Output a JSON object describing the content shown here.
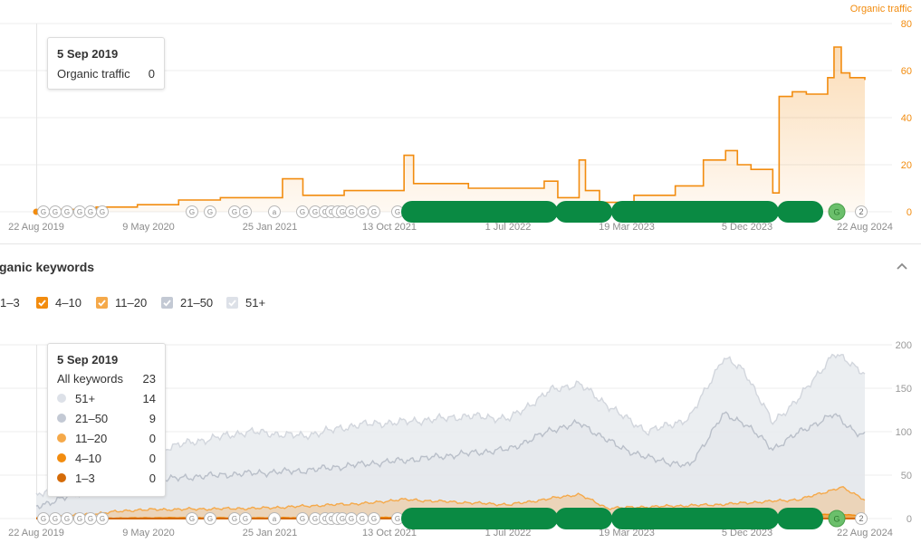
{
  "top_chart": {
    "series_label": "Organic traffic",
    "tooltip": {
      "date": "5 Sep 2019",
      "label": "Organic traffic",
      "value": "0"
    }
  },
  "keywords_section": {
    "title": "ganic keywords",
    "legend": [
      {
        "label": "1–3",
        "checked": false,
        "color": "#d46b08"
      },
      {
        "label": "4–10",
        "checked": true,
        "color": "#f28c0f"
      },
      {
        "label": "11–20",
        "checked": true,
        "color": "#f5a94a"
      },
      {
        "label": "21–50",
        "checked": false,
        "color": "#c3c9d4"
      },
      {
        "label": "51+",
        "checked": false,
        "color": "#dde1e8"
      }
    ],
    "tooltip": {
      "date": "5 Sep 2019",
      "total_label": "All keywords",
      "total_value": "23",
      "rows": [
        {
          "label": "51+",
          "value": "14",
          "color": "#dde1e8"
        },
        {
          "label": "21–50",
          "value": "9",
          "color": "#c3c9d4"
        },
        {
          "label": "11–20",
          "value": "0",
          "color": "#f5a94a"
        },
        {
          "label": "4–10",
          "value": "0",
          "color": "#f28c0f"
        },
        {
          "label": "1–3",
          "value": "0",
          "color": "#d46b08"
        }
      ]
    }
  },
  "colors": {
    "traffic": "#f28c0f",
    "kw_51": "#d2d6dd",
    "kw_21": "#b9bfc9",
    "kw_11": "#f5a94a",
    "kw_4": "#f28c0f",
    "kw_1": "#d46b08",
    "update_marker": "#0a8a43",
    "update_marker_light": "#6bbf6b"
  },
  "chart_data": [
    {
      "type": "area",
      "series": [
        {
          "name": "Organic traffic",
          "x": [
            "2019-08-22",
            "2019-10-01",
            "2020-01-01",
            "2020-04-01",
            "2020-07-01",
            "2020-10-01",
            "2021-01-01",
            "2021-02-15",
            "2021-04-01",
            "2021-07-01",
            "2021-10-01",
            "2021-11-10",
            "2021-12-01",
            "2022-04-01",
            "2022-07-01",
            "2022-09-15",
            "2022-10-15",
            "2022-12-01",
            "2022-12-15",
            "2023-01-15",
            "2023-02-15",
            "2023-04-01",
            "2023-07-01",
            "2023-09-01",
            "2023-10-20",
            "2023-11-15",
            "2023-12-15",
            "2024-02-01",
            "2024-02-15",
            "2024-03-15",
            "2024-04-15",
            "2024-06-01",
            "2024-06-15",
            "2024-07-01",
            "2024-07-20",
            "2024-08-22"
          ],
          "values": [
            0,
            1,
            2,
            3,
            5,
            6,
            6,
            14,
            7,
            9,
            9,
            24,
            12,
            10,
            10,
            13,
            6,
            22,
            9,
            4,
            4,
            7,
            11,
            22,
            26,
            20,
            18,
            8,
            49,
            51,
            50,
            57,
            70,
            59,
            57,
            56
          ]
        }
      ],
      "x_ticks": [
        "22 Aug 2019",
        "9 May 2020",
        "25 Jan 2021",
        "13 Oct 2021",
        "1 Jul 2022",
        "19 Mar 2023",
        "5 Dec 2023",
        "22 Aug 2024"
      ],
      "y_ticks": [
        0,
        20,
        40,
        60,
        80
      ],
      "ylim": [
        0,
        80
      ],
      "legend": "top-right"
    },
    {
      "type": "area",
      "series": [
        {
          "name": "51+",
          "x": [
            "2019-08-22",
            "2019-12-01",
            "2020-04-01",
            "2020-08-01",
            "2020-12-01",
            "2021-04-01",
            "2021-08-01",
            "2021-12-01",
            "2022-04-01",
            "2022-07-01",
            "2022-10-01",
            "2022-12-01",
            "2023-03-01",
            "2023-05-01",
            "2023-08-01",
            "2023-10-15",
            "2023-12-01",
            "2024-02-01",
            "2024-04-01",
            "2024-06-15",
            "2024-08-01",
            "2024-08-22"
          ],
          "values": [
            24,
            60,
            75,
            88,
            100,
            95,
            108,
            112,
            118,
            115,
            148,
            155,
            120,
            100,
            115,
            185,
            170,
            110,
            140,
            190,
            175,
            168
          ]
        },
        {
          "name": "21–50",
          "x": [
            "2019-08-22",
            "2019-12-01",
            "2020-04-01",
            "2020-08-01",
            "2020-12-01",
            "2021-04-01",
            "2021-08-01",
            "2021-12-01",
            "2022-04-01",
            "2022-07-01",
            "2022-10-01",
            "2022-12-01",
            "2023-03-01",
            "2023-05-01",
            "2023-08-01",
            "2023-10-15",
            "2023-12-01",
            "2024-02-01",
            "2024-04-01",
            "2024-06-15",
            "2024-08-01",
            "2024-08-22"
          ],
          "values": [
            14,
            30,
            42,
            48,
            52,
            55,
            62,
            68,
            75,
            80,
            102,
            110,
            82,
            70,
            60,
            120,
            110,
            80,
            100,
            120,
            100,
            95
          ]
        },
        {
          "name": "11–20",
          "x": [
            "2019-08-22",
            "2020-04-01",
            "2021-01-01",
            "2021-09-01",
            "2021-11-01",
            "2022-07-01",
            "2022-12-01",
            "2023-02-01",
            "2023-10-01",
            "2024-04-01",
            "2024-07-01",
            "2024-08-22"
          ],
          "values": [
            0,
            10,
            12,
            18,
            22,
            16,
            28,
            12,
            16,
            22,
            36,
            22
          ]
        },
        {
          "name": "4–10",
          "x": [
            "2019-08-22",
            "2020-06-01",
            "2021-06-01",
            "2022-06-01",
            "2023-06-01",
            "2024-03-01",
            "2024-07-01",
            "2024-08-22"
          ],
          "values": [
            0,
            1,
            1,
            2,
            2,
            4,
            5,
            3
          ]
        },
        {
          "name": "1–3",
          "x": [
            "2019-08-22",
            "2024-08-22"
          ],
          "values": [
            0,
            0
          ]
        }
      ],
      "x_ticks": [
        "22 Aug 2019",
        "9 May 2020",
        "25 Jan 2021",
        "13 Oct 2021",
        "1 Jul 2022",
        "19 Mar 2023",
        "5 Dec 2023",
        "22 Aug 2024"
      ],
      "y_ticks": [
        0,
        50,
        100,
        150,
        200
      ],
      "ylim": [
        0,
        200
      ]
    }
  ],
  "update_markers": {
    "letters": [
      "G",
      "G",
      "G",
      "G",
      "G",
      "G",
      "G",
      "G",
      "G",
      "G",
      "a",
      "G",
      "G",
      "G",
      "G",
      "a",
      "G",
      "G"
    ],
    "count_badge": "2"
  }
}
